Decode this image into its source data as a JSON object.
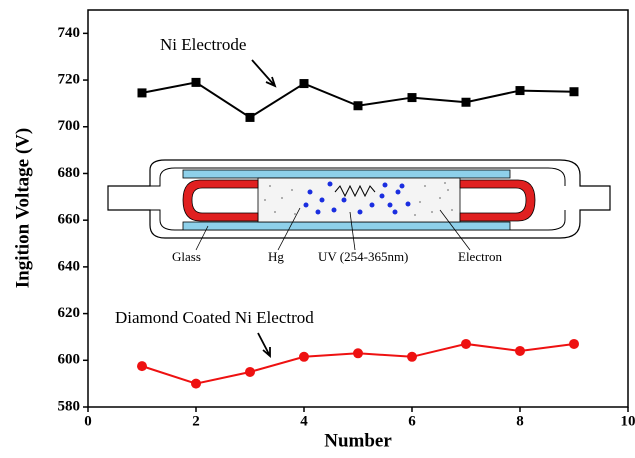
{
  "chart_data": {
    "type": "line",
    "x_label": "Number",
    "y_label": "Ingition Voltage (V)",
    "xlim": [
      0,
      10
    ],
    "xticks": [
      0,
      2,
      4,
      6,
      8,
      10
    ],
    "ylim": [
      580,
      750
    ],
    "yticks": [
      580,
      600,
      620,
      640,
      660,
      680,
      700,
      720,
      740
    ],
    "series": [
      {
        "name": "Ni Electrode",
        "color": "#000000",
        "marker": "square",
        "x": [
          1,
          2,
          3,
          4,
          5,
          6,
          7,
          8,
          9
        ],
        "values": [
          714.5,
          719,
          704,
          718.5,
          709,
          712.5,
          710.5,
          715.5,
          715
        ]
      },
      {
        "name": "Diamond Coated Ni Electrod",
        "color": "#ee1111",
        "marker": "circle",
        "x": [
          1,
          2,
          3,
          4,
          5,
          6,
          7,
          8,
          9
        ],
        "values": [
          597.5,
          590,
          595,
          601.5,
          603,
          601.5,
          607,
          604,
          607
        ]
      }
    ],
    "inset_labels": [
      "Glass",
      "Hg",
      "UV (254-365nm)",
      "Electron"
    ]
  }
}
